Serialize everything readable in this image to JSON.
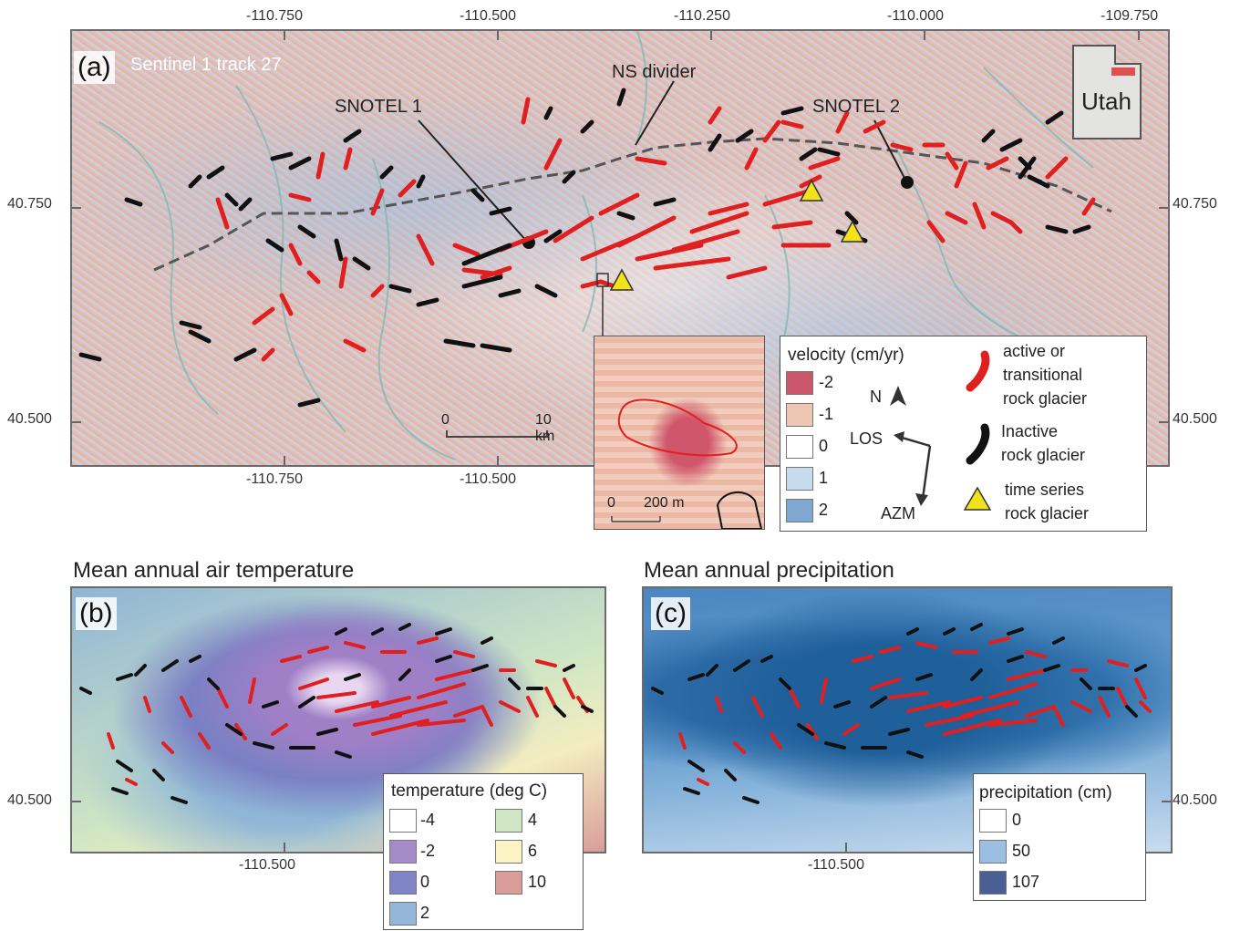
{
  "panel_a": {
    "letter": "(a)",
    "subtitle": "Sentinel 1 track 27",
    "top_ticks": [
      "-110.750",
      "-110.500",
      "-110.250",
      "-110.000",
      "-109.750"
    ],
    "bottom_ticks": [
      "-110.750",
      "-110.500"
    ],
    "left_ticks": [
      "40.750",
      "40.500"
    ],
    "right_ticks": [
      "40.750",
      "40.500"
    ],
    "labels": {
      "snotel1": "SNOTEL 1",
      "snotel2": "SNOTEL 2",
      "ns_divider": "NS divider",
      "inset_state": "Utah"
    },
    "scale_bar": {
      "start": "0",
      "end": "10 km"
    },
    "inset_scale_bar": {
      "start": "0",
      "end": "200 m"
    },
    "velocity_legend": {
      "title": "velocity (cm/yr)",
      "items": [
        {
          "label": "-2",
          "color": "#c9566a"
        },
        {
          "label": "-1",
          "color": "#efc6b2"
        },
        {
          "label": "0",
          "color": "#ffffff"
        },
        {
          "label": "1",
          "color": "#c6dcee"
        },
        {
          "label": "2",
          "color": "#7fa9d3"
        }
      ]
    },
    "direction": {
      "north": "N",
      "los": "LOS",
      "azm": "AZM"
    },
    "symbol_legend": [
      {
        "label_line1": "active or",
        "label_line2": "transitional",
        "label_line3": "rock glacier",
        "color": "#e02020"
      },
      {
        "label_line1": "Inactive",
        "label_line2": "rock glacier",
        "color": "#111111"
      },
      {
        "label_line1": "time series",
        "label_line2": "rock glacier",
        "color": "#f2e21a"
      }
    ]
  },
  "panel_b": {
    "letter": "(b)",
    "title": "Mean annual air temperature",
    "left_ticks": [
      "40.500"
    ],
    "bottom_ticks": [
      "-110.500"
    ],
    "legend": {
      "title": "temperature (deg C)",
      "items": [
        {
          "label": "-4",
          "color": "#ffffff"
        },
        {
          "label": "-2",
          "color": "#a48cc8"
        },
        {
          "label": "0",
          "color": "#7f84c6"
        },
        {
          "label": "2",
          "color": "#93b6d9"
        },
        {
          "label": "4",
          "color": "#cfe6c4"
        },
        {
          "label": "6",
          "color": "#fbf3c4"
        },
        {
          "label": "10",
          "color": "#d99d9a"
        }
      ]
    }
  },
  "panel_c": {
    "letter": "(c)",
    "title": "Mean annual precipitation",
    "right_ticks": [
      "40.500"
    ],
    "bottom_ticks": [
      "-110.500"
    ],
    "legend": {
      "title": "precipitation (cm)",
      "items": [
        {
          "label": "0",
          "color": "#ffffff"
        },
        {
          "label": "50",
          "color": "#9bbfe3"
        },
        {
          "label": "107",
          "color": "#4a5f93"
        }
      ]
    }
  },
  "colors": {
    "active": "#e02020",
    "inactive": "#111111",
    "time_series": "#f2e21a",
    "divider": "#555555"
  }
}
